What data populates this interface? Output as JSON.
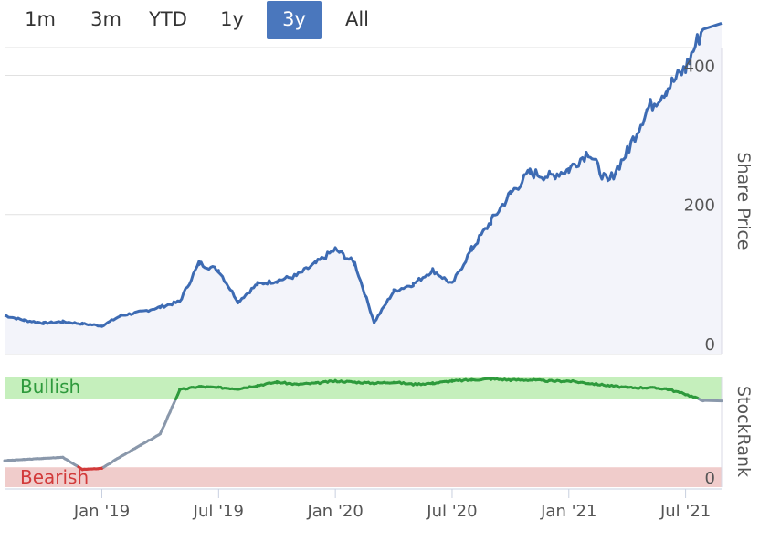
{
  "range_selector": {
    "buttons": [
      {
        "label": "1m"
      },
      {
        "label": "3m"
      },
      {
        "label": "YTD"
      },
      {
        "label": "1y"
      },
      {
        "label": "3y"
      },
      {
        "label": "All"
      }
    ],
    "selected": "3y"
  },
  "colors": {
    "price_line": "#3d6bb3",
    "price_fill": "#f3f4fa",
    "bullish_band": "#c5efbc",
    "bullish_line": "#2e9a3c",
    "bearish_band": "#f0cccb",
    "bearish_line": "#d23a3a",
    "neutral_line": "#8a98ab",
    "grid": "#e1e1e1",
    "active_button": "#4a77bd"
  },
  "chart_data": [
    {
      "type": "area",
      "ylabel": "Share Price",
      "y_ticks": [
        "0",
        "200",
        "400"
      ],
      "ylim": [
        0,
        440
      ],
      "x_ticks": [
        "Jan '19",
        "Jul '19",
        "Jan '20",
        "Jul '20",
        "Jan '21",
        "Jul '21"
      ],
      "x": [
        "2018-08",
        "2018-09",
        "2018-10",
        "2018-11",
        "2018-12",
        "2019-01",
        "2019-02",
        "2019-03",
        "2019-04",
        "2019-05",
        "2019-06",
        "2019-07",
        "2019-08",
        "2019-09",
        "2019-10",
        "2019-11",
        "2019-12",
        "2020-01",
        "2020-02",
        "2020-03",
        "2020-04",
        "2020-05",
        "2020-06",
        "2020-07",
        "2020-08",
        "2020-09",
        "2020-10",
        "2020-11",
        "2020-12",
        "2021-01",
        "2021-02",
        "2021-03",
        "2021-04",
        "2021-05",
        "2021-06",
        "2021-07",
        "2021-08"
      ],
      "values": [
        55,
        48,
        44,
        46,
        43,
        40,
        55,
        60,
        67,
        75,
        130,
        120,
        75,
        100,
        105,
        112,
        130,
        150,
        130,
        45,
        90,
        100,
        120,
        100,
        150,
        190,
        230,
        260,
        255,
        265,
        290,
        245,
        290,
        350,
        380,
        410,
        475
      ]
    },
    {
      "type": "line",
      "ylabel": "StockRank",
      "y_ticks": [
        "0"
      ],
      "bands": [
        {
          "label": "Bullish",
          "from": 80,
          "to": 100
        },
        {
          "label": "Bearish",
          "from": 0,
          "to": 18
        }
      ],
      "ylim": [
        0,
        100
      ],
      "x": [
        "2018-08",
        "2018-09",
        "2018-10",
        "2018-11",
        "2018-12",
        "2019-01",
        "2019-02",
        "2019-03",
        "2019-04",
        "2019-05",
        "2019-06",
        "2019-07",
        "2019-08",
        "2019-09",
        "2019-10",
        "2019-11",
        "2019-12",
        "2020-01",
        "2020-02",
        "2020-03",
        "2020-04",
        "2020-05",
        "2020-06",
        "2020-07",
        "2020-08",
        "2020-09",
        "2020-10",
        "2020-11",
        "2020-12",
        "2021-01",
        "2021-02",
        "2021-03",
        "2021-04",
        "2021-05",
        "2021-06",
        "2021-07",
        "2021-08"
      ],
      "values": [
        24,
        25,
        26,
        27,
        16,
        17,
        28,
        38,
        48,
        88,
        91,
        90,
        89,
        92,
        95,
        93,
        94,
        96,
        95,
        94,
        95,
        93,
        94,
        96,
        97,
        98,
        97,
        97,
        96,
        96,
        94,
        92,
        90,
        90,
        89,
        84,
        78
      ]
    }
  ]
}
